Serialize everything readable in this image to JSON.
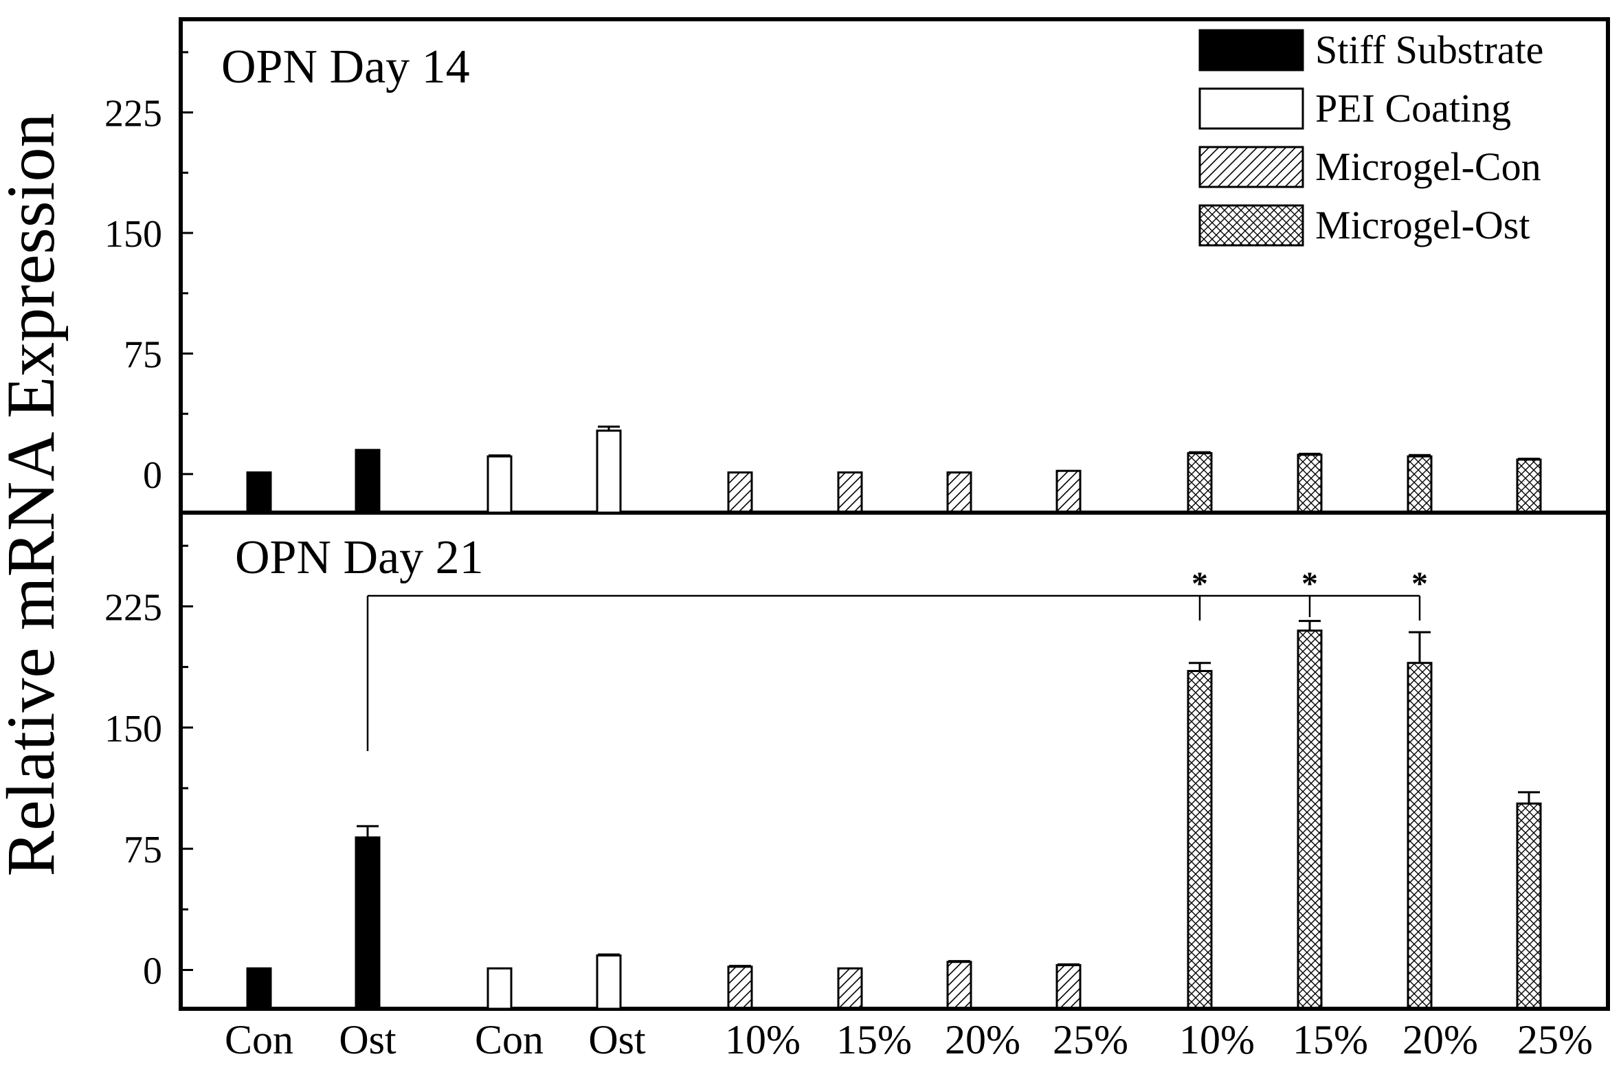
{
  "chart_data": {
    "type": "bar",
    "ylabel": "Relative mRNA Expression",
    "categories": [
      "Con",
      "Ost",
      "Con",
      "Ost",
      "10%",
      "15%",
      "20%",
      "25%",
      "10%",
      "15%",
      "20%",
      "25%"
    ],
    "category_groups": [
      "Stiff Substrate",
      "Stiff Substrate",
      "PEI Coating",
      "PEI Coating",
      "Microgel-Con",
      "Microgel-Con",
      "Microgel-Con",
      "Microgel-Con",
      "Microgel-Ost",
      "Microgel-Ost",
      "Microgel-Ost",
      "Microgel-Ost"
    ],
    "legend": {
      "placement": "top-right",
      "entries": [
        {
          "name": "Stiff Substrate",
          "fill": "solid"
        },
        {
          "name": "PEI Coating",
          "fill": "empty"
        },
        {
          "name": "Microgel-Con",
          "fill": "hatch"
        },
        {
          "name": "Microgel-Ost",
          "fill": "crosshatch"
        }
      ]
    },
    "yticks": [
      0,
      75,
      150,
      225
    ],
    "ylim": [
      -24,
      283
    ],
    "panels": [
      {
        "title": "OPN Day 14",
        "values": [
          1,
          15,
          11,
          27,
          1,
          1,
          1,
          2,
          13,
          12,
          11,
          9
        ],
        "errors": [
          0,
          0,
          0.6,
          2.5,
          0,
          0,
          0,
          0,
          0.6,
          0.6,
          0.8,
          0.5
        ]
      },
      {
        "title": "OPN Day 21",
        "values": [
          1,
          82,
          1,
          9,
          2,
          1,
          5,
          3,
          185,
          210,
          190,
          103
        ],
        "errors": [
          0,
          7,
          0,
          0.6,
          0.5,
          0,
          0.5,
          0.5,
          5,
          6,
          19,
          7
        ],
        "significance": {
          "from_index": 1,
          "to_indices": [
            8,
            9,
            10
          ],
          "marker": "*"
        }
      }
    ],
    "colors": {
      "ink": "#000000",
      "background": "#ffffff"
    }
  }
}
